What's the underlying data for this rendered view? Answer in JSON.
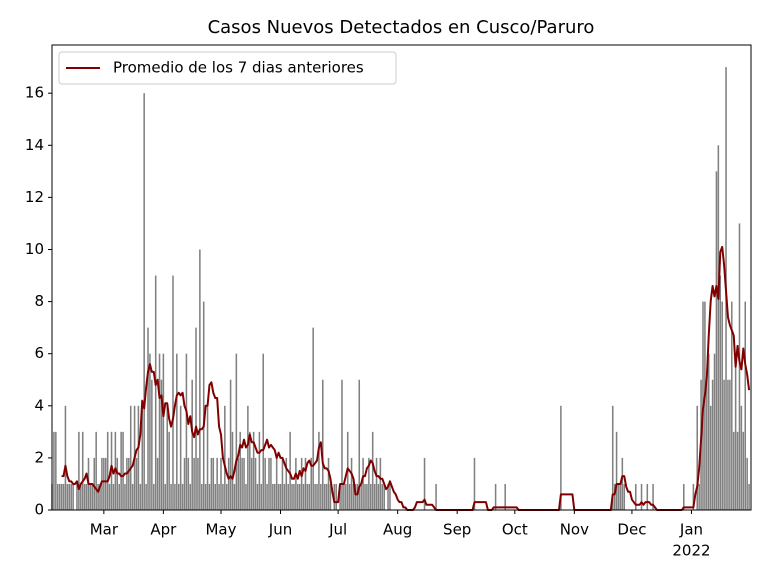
{
  "chart_data": {
    "type": "bar",
    "title": "Casos Nuevos Detectados en Cusco/Paruro",
    "xlim": [
      0,
      364
    ],
    "ylim": [
      0,
      17.85
    ],
    "yticks": [
      0,
      2,
      4,
      6,
      8,
      10,
      12,
      14,
      16
    ],
    "xticks": [
      {
        "value": 27,
        "label": "Mar"
      },
      {
        "value": 58,
        "label": "Apr"
      },
      {
        "value": 88,
        "label": "May"
      },
      {
        "value": 119,
        "label": "Jun"
      },
      {
        "value": 149,
        "label": "Jul"
      },
      {
        "value": 180,
        "label": "Aug"
      },
      {
        "value": 211,
        "label": "Sep"
      },
      {
        "value": 241,
        "label": "Oct"
      },
      {
        "value": 272,
        "label": "Nov"
      },
      {
        "value": 302,
        "label": "Dec"
      },
      {
        "value": 333,
        "label": "Jan"
      }
    ],
    "year_label": {
      "value": 333,
      "label": "2022"
    },
    "legend": "upper left",
    "series": [
      {
        "type": "bar",
        "color": "#808080",
        "values": [
          1,
          3,
          3,
          1,
          1,
          1,
          1,
          4,
          1,
          1,
          1,
          1,
          0,
          1,
          3,
          1,
          3,
          1,
          1,
          2,
          1,
          1,
          2,
          3,
          1,
          1,
          2,
          2,
          2,
          3,
          1,
          3,
          1,
          3,
          2,
          1,
          3,
          3,
          1,
          2,
          2,
          4,
          1,
          4,
          2,
          4,
          1,
          4,
          16,
          1,
          7,
          6,
          5,
          1,
          9,
          2,
          6,
          5,
          6,
          1,
          4,
          3,
          1,
          9,
          1,
          6,
          1,
          4,
          1,
          2,
          6,
          2,
          1,
          5,
          2,
          7,
          2,
          10,
          1,
          8,
          1,
          4,
          1,
          2,
          2,
          1,
          2,
          1,
          2,
          1,
          4,
          1,
          2,
          5,
          3,
          1,
          6,
          2,
          3,
          2,
          2,
          1,
          4,
          3,
          2,
          3,
          2,
          1,
          3,
          1,
          6,
          2,
          1,
          2,
          2,
          1,
          1,
          2,
          1,
          1,
          2,
          1,
          2,
          1,
          3,
          1,
          1,
          2,
          1,
          1,
          2,
          1,
          2,
          1,
          1,
          2,
          7,
          1,
          1,
          3,
          1,
          5,
          1,
          1,
          2,
          1,
          0,
          1,
          1,
          0,
          1,
          5,
          1,
          1,
          3,
          1,
          2,
          1,
          1,
          1,
          5,
          1,
          2,
          1,
          1,
          2,
          1,
          3,
          1,
          2,
          1,
          2,
          1,
          1,
          0,
          1,
          1,
          0,
          0,
          0,
          0,
          0,
          0,
          0,
          0,
          0,
          0,
          0,
          0,
          0,
          0,
          0,
          0,
          0,
          2,
          0,
          0,
          0,
          0,
          0,
          1,
          0,
          0,
          0,
          0,
          0,
          0,
          0,
          0,
          0,
          0,
          0,
          0,
          0,
          0,
          0,
          0,
          0,
          0,
          0,
          2,
          0,
          0,
          0,
          0,
          0,
          0,
          0,
          0,
          0,
          0,
          1,
          0,
          0,
          0,
          0,
          1,
          0,
          0,
          0,
          0,
          0,
          0,
          0,
          0,
          0,
          0,
          0,
          0,
          0,
          0,
          0,
          0,
          0,
          0,
          0,
          0,
          0,
          0,
          0,
          0,
          0,
          0,
          0,
          0,
          4,
          0,
          0,
          0,
          0,
          0,
          0,
          0,
          0,
          0,
          0,
          0,
          0,
          0,
          0,
          0,
          0,
          0,
          0,
          0,
          0,
          0,
          0,
          0,
          0,
          0,
          0,
          4,
          1,
          3,
          1,
          1,
          2,
          1,
          0,
          0,
          0,
          0,
          0,
          1,
          0,
          0,
          1,
          0,
          0,
          1,
          0,
          0,
          1,
          0,
          0,
          0,
          0,
          0,
          0,
          0,
          0,
          0,
          0,
          0,
          0,
          0,
          0,
          0,
          1,
          0,
          0,
          0,
          0,
          1,
          0,
          4,
          1,
          5,
          8,
          8,
          5,
          6,
          4,
          5,
          6,
          13,
          14,
          9,
          8,
          5,
          17,
          5,
          5,
          8,
          3,
          6,
          3,
          11,
          4,
          3,
          8,
          2,
          1
        ]
      },
      {
        "type": "line",
        "name": "Promedio de los 7 dias anteriores",
        "color": "#800000",
        "values": [
          null,
          null,
          null,
          null,
          null,
          1.3,
          1.3,
          1.7,
          1.3,
          1.1,
          1.1,
          1.0,
          1.0,
          1.1,
          0.8,
          1.0,
          1.1,
          1.2,
          1.4,
          1.0,
          1.0,
          1.0,
          0.9,
          0.8,
          0.7,
          0.9,
          1.1,
          1.1,
          1.1,
          1.1,
          1.3,
          1.7,
          1.4,
          1.6,
          1.4,
          1.4,
          1.3,
          1.3,
          1.4,
          1.4,
          1.5,
          1.6,
          1.7,
          2.0,
          2.3,
          2.4,
          2.9,
          4.2,
          3.9,
          4.7,
          5.3,
          5.6,
          5.3,
          5.3,
          4.8,
          5.0,
          4.3,
          4.4,
          3.6,
          4.1,
          4.1,
          3.5,
          3.2,
          3.5,
          4.0,
          4.4,
          4.5,
          4.4,
          4.5,
          4.0,
          3.8,
          3.3,
          3.6,
          3.0,
          2.8,
          3.2,
          2.9,
          3.1,
          3.1,
          3.2,
          4.0,
          4.0,
          4.8,
          4.9,
          4.5,
          4.3,
          4.3,
          3.2,
          2.9,
          2.0,
          1.7,
          1.4,
          1.2,
          1.3,
          1.2,
          1.5,
          1.9,
          2.1,
          2.5,
          2.4,
          2.7,
          2.4,
          2.5,
          2.9,
          2.6,
          2.6,
          2.4,
          2.2,
          2.2,
          2.3,
          2.3,
          2.5,
          2.7,
          2.4,
          2.5,
          2.4,
          2.3,
          2.0,
          2.2,
          2.0,
          2.0,
          1.8,
          1.6,
          1.5,
          1.4,
          1.2,
          1.2,
          1.4,
          1.2,
          1.5,
          1.3,
          1.6,
          1.5,
          1.8,
          1.9,
          1.7,
          1.7,
          1.8,
          1.9,
          2.4,
          2.6,
          1.8,
          1.6,
          1.6,
          1.5,
          1.2,
          0.7,
          0.3,
          0.3,
          0.3,
          1.0,
          1.0,
          1.0,
          1.3,
          1.6,
          1.5,
          1.4,
          1.2,
          0.6,
          0.6,
          0.9,
          1.0,
          1.3,
          1.3,
          1.6,
          1.7,
          1.9,
          1.8,
          1.5,
          1.3,
          1.3,
          1.2,
          1.2,
          1.0,
          0.8,
          0.9,
          1.1,
          0.9,
          0.7,
          0.6,
          0.4,
          0.3,
          0.3,
          0.1,
          0.1,
          0,
          0,
          0,
          0,
          0.1,
          0.3,
          0.3,
          0.3,
          0.3,
          0.4,
          0.2,
          0.2,
          0.2,
          0.2,
          0.1,
          0,
          0,
          0,
          0,
          0,
          0,
          0,
          0,
          0,
          0,
          0,
          0,
          0,
          0,
          0,
          0,
          0,
          0,
          0,
          0,
          0.3,
          0.3,
          0.3,
          0.3,
          0.3,
          0.3,
          0.3,
          0,
          0,
          0,
          0.1,
          0.1,
          0.1,
          0.1,
          0.1,
          0.1,
          0.1,
          0.1,
          0.1,
          0.1,
          0.1,
          0.1,
          0.1,
          0,
          0,
          0,
          0,
          0,
          0,
          0,
          0,
          0,
          0,
          0,
          0,
          0,
          0,
          0,
          0,
          0,
          0,
          0,
          0,
          0,
          0,
          0.6,
          0.6,
          0.6,
          0.6,
          0.6,
          0.6,
          0.6,
          0,
          0,
          0,
          0,
          0,
          0,
          0,
          0,
          0,
          0,
          0,
          0,
          0,
          0,
          0,
          0,
          0,
          0,
          0,
          0,
          0.6,
          0.6,
          1.0,
          1.0,
          1.0,
          1.3,
          1.3,
          0.9,
          0.7,
          0.7,
          0.4,
          0.3,
          0.2,
          0.2,
          0.2,
          0.3,
          0.2,
          0.3,
          0.3,
          0.3,
          0.2,
          0.2,
          0.1,
          0,
          0,
          0,
          0,
          0,
          0,
          0,
          0,
          0,
          0,
          0,
          0,
          0,
          0,
          0.1,
          0.1,
          0.1,
          0.1,
          0.1,
          0.1,
          0.6,
          0.9,
          1.6,
          2.7,
          3.9,
          4.4,
          5.1,
          6.7,
          8.0,
          8.6,
          8.2,
          8.6,
          8.1,
          9.9,
          10.1,
          9.4,
          8.4,
          7.4,
          7.1,
          6.9,
          6.7,
          5.5,
          6.3,
          5.7,
          5.4,
          6.2,
          5.6,
          5.2,
          4.6
        ]
      }
    ]
  }
}
